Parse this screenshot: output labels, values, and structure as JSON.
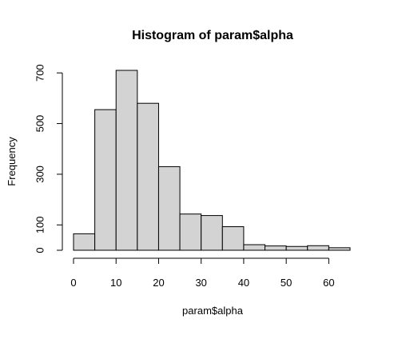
{
  "chart_data": {
    "type": "bar",
    "title": "Histogram of param$alpha",
    "xlabel": "param$alpha",
    "ylabel": "Frequency",
    "bin_edges": [
      0,
      5,
      10,
      15,
      20,
      25,
      30,
      35,
      40,
      45,
      50,
      55,
      60,
      65
    ],
    "values": [
      65,
      555,
      710,
      580,
      330,
      143,
      137,
      93,
      22,
      17,
      15,
      18,
      10
    ],
    "x_ticks": [
      0,
      10,
      20,
      30,
      40,
      50,
      60
    ],
    "y_ticks": [
      0,
      100,
      300,
      500,
      700
    ],
    "xlim": [
      0,
      65
    ],
    "ylim": [
      0,
      710
    ],
    "grid": false,
    "bar_color": "#d3d3d3",
    "edge_color": "#000000"
  }
}
